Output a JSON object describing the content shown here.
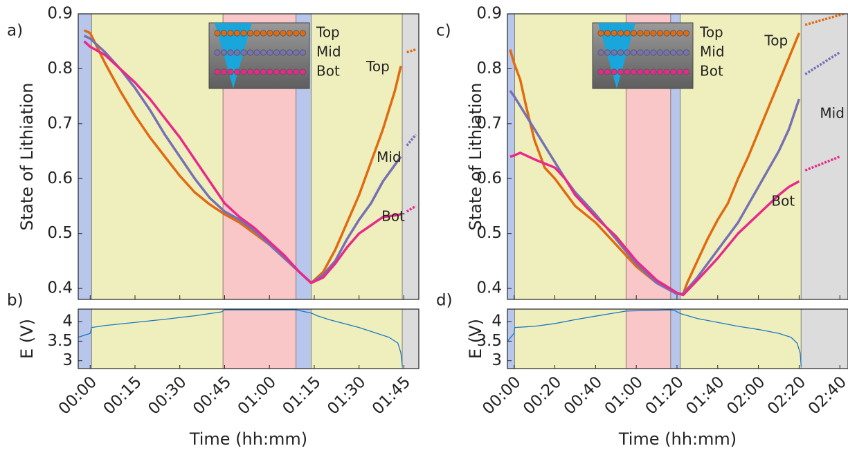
{
  "chart_data": [
    {
      "type": "line",
      "panel_label": "a)",
      "ylabel": "State of Lithiation",
      "xlim": [
        -4,
        110
      ],
      "ylim": [
        0.38,
        0.9
      ],
      "yticks": [
        0.4,
        0.5,
        0.6,
        0.7,
        0.8,
        0.9
      ],
      "regions": [
        {
          "start": -4,
          "end": 0.5,
          "color": "#b7c6ea"
        },
        {
          "start": 0.5,
          "end": 44.5,
          "color": "#efefbd"
        },
        {
          "start": 44.5,
          "end": 69,
          "color": "#f9c7c7"
        },
        {
          "start": 69,
          "end": 74,
          "color": "#b7c6ea"
        },
        {
          "start": 74,
          "end": 104.5,
          "color": "#efefbd"
        },
        {
          "start": 104.5,
          "end": 110,
          "color": "#dcdcdc"
        }
      ],
      "inset_labels": [
        "Top",
        "Mid",
        "Bot"
      ],
      "series": [
        {
          "name": "Top",
          "color": "#e06a10",
          "x": [
            -2,
            0,
            5,
            10,
            15,
            20,
            25,
            30,
            35,
            40,
            45,
            50,
            55,
            60,
            65,
            70,
            74,
            78,
            82,
            86,
            90,
            94,
            98,
            102,
            104
          ],
          "values": [
            0.87,
            0.865,
            0.81,
            0.76,
            0.715,
            0.675,
            0.64,
            0.605,
            0.575,
            0.553,
            0.535,
            0.52,
            0.5,
            0.48,
            0.455,
            0.43,
            0.41,
            0.43,
            0.47,
            0.52,
            0.57,
            0.63,
            0.69,
            0.76,
            0.805
          ],
          "dotted": {
            "x": [
              106,
              109
            ],
            "values": [
              0.83,
              0.835
            ]
          }
        },
        {
          "name": "Mid",
          "color": "#7670b4",
          "x": [
            -2,
            0,
            5,
            10,
            15,
            20,
            25,
            30,
            35,
            40,
            45,
            50,
            55,
            60,
            65,
            70,
            74,
            78,
            82,
            86,
            90,
            94,
            98,
            102,
            104
          ],
          "values": [
            0.86,
            0.855,
            0.83,
            0.8,
            0.765,
            0.725,
            0.68,
            0.64,
            0.6,
            0.565,
            0.54,
            0.525,
            0.505,
            0.48,
            0.455,
            0.43,
            0.41,
            0.425,
            0.45,
            0.49,
            0.525,
            0.555,
            0.595,
            0.625,
            0.64
          ],
          "dotted": {
            "x": [
              106,
              109
            ],
            "values": [
              0.66,
              0.68
            ]
          }
        },
        {
          "name": "Bot",
          "color": "#e8298a",
          "x": [
            -2,
            0,
            5,
            10,
            15,
            20,
            25,
            30,
            35,
            40,
            45,
            50,
            55,
            60,
            65,
            70,
            74,
            78,
            82,
            86,
            90,
            94,
            98,
            102,
            104
          ],
          "values": [
            0.85,
            0.84,
            0.825,
            0.8,
            0.775,
            0.745,
            0.71,
            0.675,
            0.635,
            0.595,
            0.555,
            0.53,
            0.51,
            0.485,
            0.46,
            0.43,
            0.41,
            0.42,
            0.445,
            0.475,
            0.5,
            0.515,
            0.53,
            0.533,
            0.535
          ],
          "dotted": {
            "x": [
              106,
              109
            ],
            "values": [
              0.54,
              0.55
            ]
          }
        }
      ]
    },
    {
      "type": "line",
      "panel_label": "b)",
      "ylabel": "E (V)",
      "xlabel": "Time (hh:mm)",
      "xlim": [
        -4,
        110
      ],
      "ylim": [
        2.8,
        4.32
      ],
      "yticks": [
        3,
        3.5,
        4
      ],
      "xticks": [
        {
          "value": 0,
          "label": "00:00"
        },
        {
          "value": 15,
          "label": "00:15"
        },
        {
          "value": 30,
          "label": "00:30"
        },
        {
          "value": 45,
          "label": "00:45"
        },
        {
          "value": 60,
          "label": "01:00"
        },
        {
          "value": 75,
          "label": "01:15"
        },
        {
          "value": 90,
          "label": "01:30"
        },
        {
          "value": 105,
          "label": "01:45"
        }
      ],
      "regions": [
        {
          "start": -4,
          "end": 0.5,
          "color": "#b7c6ea"
        },
        {
          "start": 0.5,
          "end": 44.5,
          "color": "#efefbd"
        },
        {
          "start": 44.5,
          "end": 69,
          "color": "#f9c7c7"
        },
        {
          "start": 69,
          "end": 74,
          "color": "#b7c6ea"
        },
        {
          "start": 74,
          "end": 104.5,
          "color": "#efefbd"
        },
        {
          "start": 104.5,
          "end": 110,
          "color": "#dcdcdc"
        }
      ],
      "series": [
        {
          "color": "#1a78c2",
          "x": [
            -4,
            0,
            0.5,
            5,
            15,
            25,
            35,
            44,
            45,
            69,
            72,
            74,
            76,
            80,
            90,
            100,
            103,
            104,
            104.5
          ],
          "values": [
            3.6,
            3.7,
            3.85,
            3.9,
            3.98,
            4.06,
            4.15,
            4.25,
            4.3,
            4.3,
            4.25,
            4.22,
            4.15,
            4.05,
            3.85,
            3.6,
            3.45,
            3.2,
            2.85
          ]
        }
      ]
    },
    {
      "type": "line",
      "panel_label": "c)",
      "ylabel": "State of Lithiation",
      "xlim": [
        -3.3,
        164
      ],
      "ylim": [
        0.38,
        0.9
      ],
      "yticks": [
        0.4,
        0.5,
        0.6,
        0.7,
        0.8,
        0.9
      ],
      "regions": [
        {
          "start": -3.3,
          "end": 0.3,
          "color": "#b7c6ea"
        },
        {
          "start": 0.3,
          "end": 55,
          "color": "#efefbd"
        },
        {
          "start": 55,
          "end": 77,
          "color": "#f9c7c7"
        },
        {
          "start": 77,
          "end": 81.7,
          "color": "#b7c6ea"
        },
        {
          "start": 81.7,
          "end": 141,
          "color": "#efefbd"
        },
        {
          "start": 141,
          "end": 164,
          "color": "#dcdcdc"
        }
      ],
      "inset_labels": [
        "Top",
        "Mid",
        "Bot"
      ],
      "series": [
        {
          "name": "Top",
          "color": "#e06a10",
          "x": [
            -2,
            0,
            3,
            6,
            10,
            15,
            20,
            25,
            30,
            40,
            50,
            55,
            60,
            65,
            70,
            75,
            80,
            83,
            85,
            90,
            95,
            100,
            105,
            110,
            115,
            120,
            125,
            130,
            135,
            140
          ],
          "values": [
            0.835,
            0.81,
            0.78,
            0.73,
            0.67,
            0.62,
            0.6,
            0.575,
            0.55,
            0.52,
            0.48,
            0.46,
            0.44,
            0.425,
            0.41,
            0.4,
            0.39,
            0.39,
            0.41,
            0.45,
            0.49,
            0.525,
            0.555,
            0.6,
            0.64,
            0.685,
            0.73,
            0.775,
            0.82,
            0.865
          ],
          "dotted": {
            "x": [
              143,
              162
            ],
            "values": [
              0.88,
              0.9
            ]
          }
        },
        {
          "name": "Mid",
          "color": "#7670b4",
          "x": [
            -2,
            0,
            5,
            10,
            15,
            20,
            25,
            30,
            40,
            50,
            60,
            70,
            80,
            83,
            90,
            100,
            110,
            120,
            130,
            135,
            140
          ],
          "values": [
            0.76,
            0.75,
            0.72,
            0.69,
            0.66,
            0.63,
            0.6,
            0.575,
            0.535,
            0.49,
            0.445,
            0.41,
            0.39,
            0.39,
            0.42,
            0.47,
            0.52,
            0.585,
            0.65,
            0.69,
            0.745
          ],
          "dotted": {
            "x": [
              143,
              160
            ],
            "values": [
              0.79,
              0.83
            ]
          }
        },
        {
          "name": "Bot",
          "color": "#e8298a",
          "x": [
            -2,
            0,
            3,
            10,
            20,
            25,
            30,
            40,
            50,
            60,
            70,
            80,
            83,
            90,
            100,
            110,
            120,
            130,
            135,
            140
          ],
          "values": [
            0.64,
            0.642,
            0.647,
            0.635,
            0.62,
            0.6,
            0.57,
            0.53,
            0.495,
            0.45,
            0.415,
            0.392,
            0.388,
            0.415,
            0.455,
            0.5,
            0.535,
            0.57,
            0.585,
            0.595
          ],
          "dotted": {
            "x": [
              143,
              160
            ],
            "values": [
              0.615,
              0.64
            ]
          }
        }
      ]
    },
    {
      "type": "line",
      "panel_label": "d)",
      "ylabel": "E (V)",
      "xlabel": "Time (hh:mm)",
      "xlim": [
        -3.3,
        164
      ],
      "ylim": [
        2.8,
        4.32
      ],
      "yticks": [
        3,
        3.5,
        4
      ],
      "xticks": [
        {
          "value": 0,
          "label": "00:00"
        },
        {
          "value": 20,
          "label": "00:20"
        },
        {
          "value": 40,
          "label": "00:40"
        },
        {
          "value": 60,
          "label": "01:00"
        },
        {
          "value": 80,
          "label": "01:20"
        },
        {
          "value": 100,
          "label": "01:40"
        },
        {
          "value": 120,
          "label": "02:00"
        },
        {
          "value": 140,
          "label": "02:20"
        },
        {
          "value": 160,
          "label": "02:40"
        }
      ],
      "regions": [
        {
          "start": -3.3,
          "end": 0.3,
          "color": "#b7c6ea"
        },
        {
          "start": 0.3,
          "end": 55,
          "color": "#efefbd"
        },
        {
          "start": 55,
          "end": 77,
          "color": "#f9c7c7"
        },
        {
          "start": 77,
          "end": 81.7,
          "color": "#b7c6ea"
        },
        {
          "start": 81.7,
          "end": 141,
          "color": "#efefbd"
        },
        {
          "start": 141,
          "end": 164,
          "color": "#dcdcdc"
        }
      ],
      "series": [
        {
          "color": "#1a78c2",
          "x": [
            -3.3,
            0,
            0.3,
            10,
            20,
            30,
            40,
            55,
            77,
            79,
            80,
            82,
            90,
            100,
            110,
            120,
            130,
            136,
            139,
            140.5,
            141
          ],
          "values": [
            3.5,
            3.7,
            3.85,
            3.88,
            3.95,
            4.05,
            4.14,
            4.27,
            4.3,
            4.28,
            4.25,
            4.2,
            4.08,
            3.98,
            3.88,
            3.8,
            3.7,
            3.6,
            3.45,
            3.2,
            2.85
          ]
        }
      ]
    }
  ]
}
